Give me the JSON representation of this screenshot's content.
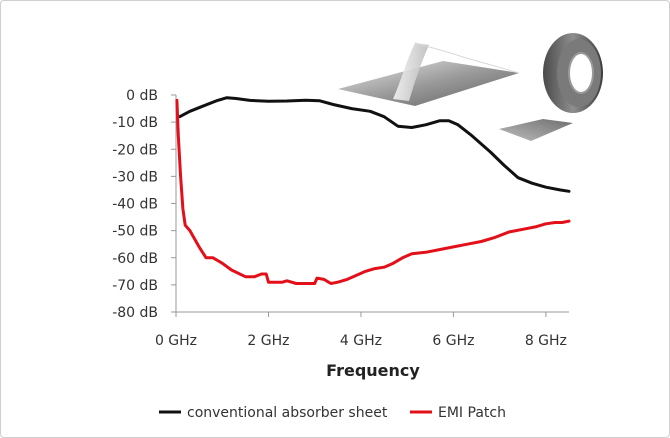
{
  "chart_data": {
    "type": "line",
    "xlabel": "Frequency",
    "ylabel": "",
    "xlim": [
      0,
      8.5
    ],
    "ylim": [
      -80,
      0
    ],
    "x_ticks": [
      {
        "value": 0,
        "label": "0 GHz"
      },
      {
        "value": 2,
        "label": "2 GHz"
      },
      {
        "value": 4,
        "label": "4 GHz"
      },
      {
        "value": 6,
        "label": "6 GHz"
      },
      {
        "value": 8,
        "label": "8 GHz"
      }
    ],
    "y_ticks": [
      {
        "value": 0,
        "label": "0 dB"
      },
      {
        "value": -10,
        "label": "-10 dB"
      },
      {
        "value": -20,
        "label": "-20 dB"
      },
      {
        "value": -30,
        "label": "-30 dB"
      },
      {
        "value": -40,
        "label": "-40 dB"
      },
      {
        "value": -50,
        "label": "-50 dB"
      },
      {
        "value": -60,
        "label": "-60 dB"
      },
      {
        "value": -70,
        "label": "-70 dB"
      },
      {
        "value": -80,
        "label": "-80 dB"
      }
    ],
    "grid": false,
    "legend_position": "bottom",
    "series": [
      {
        "name": "conventional absorber sheet",
        "color": "#111111",
        "points": [
          [
            0.08,
            -8
          ],
          [
            0.3,
            -6
          ],
          [
            0.6,
            -4
          ],
          [
            0.9,
            -2
          ],
          [
            1.1,
            -1
          ],
          [
            1.3,
            -1.3
          ],
          [
            1.6,
            -2
          ],
          [
            2.0,
            -2.3
          ],
          [
            2.4,
            -2.2
          ],
          [
            2.8,
            -1.9
          ],
          [
            3.1,
            -2.1
          ],
          [
            3.4,
            -3.5
          ],
          [
            3.8,
            -5
          ],
          [
            4.2,
            -6
          ],
          [
            4.5,
            -8
          ],
          [
            4.8,
            -11.5
          ],
          [
            5.1,
            -12
          ],
          [
            5.4,
            -11
          ],
          [
            5.7,
            -9.5
          ],
          [
            5.9,
            -9.5
          ],
          [
            6.1,
            -11
          ],
          [
            6.4,
            -15
          ],
          [
            6.8,
            -21
          ],
          [
            7.1,
            -26
          ],
          [
            7.4,
            -30.5
          ],
          [
            7.7,
            -32.5
          ],
          [
            8.0,
            -34
          ],
          [
            8.3,
            -35
          ],
          [
            8.5,
            -35.5
          ]
        ]
      },
      {
        "name": "EMI Patch",
        "color": "#e3101a",
        "points": [
          [
            0.02,
            -2
          ],
          [
            0.05,
            -15
          ],
          [
            0.1,
            -30
          ],
          [
            0.15,
            -42
          ],
          [
            0.2,
            -48
          ],
          [
            0.3,
            -50
          ],
          [
            0.5,
            -56
          ],
          [
            0.65,
            -60
          ],
          [
            0.8,
            -60
          ],
          [
            0.9,
            -61
          ],
          [
            1.0,
            -62
          ],
          [
            1.2,
            -64.5
          ],
          [
            1.5,
            -67
          ],
          [
            1.7,
            -67
          ],
          [
            1.85,
            -66
          ],
          [
            1.95,
            -66
          ],
          [
            2.0,
            -69
          ],
          [
            2.3,
            -69
          ],
          [
            2.4,
            -68.5
          ],
          [
            2.6,
            -69.5
          ],
          [
            2.9,
            -69.5
          ],
          [
            3.0,
            -69.5
          ],
          [
            3.05,
            -67.5
          ],
          [
            3.2,
            -68
          ],
          [
            3.35,
            -69.5
          ],
          [
            3.5,
            -69
          ],
          [
            3.7,
            -68
          ],
          [
            3.9,
            -66.5
          ],
          [
            4.1,
            -65
          ],
          [
            4.3,
            -64
          ],
          [
            4.5,
            -63.5
          ],
          [
            4.7,
            -62
          ],
          [
            4.9,
            -60
          ],
          [
            5.1,
            -58.5
          ],
          [
            5.4,
            -58
          ],
          [
            5.7,
            -57
          ],
          [
            6.0,
            -56
          ],
          [
            6.3,
            -55
          ],
          [
            6.6,
            -54
          ],
          [
            6.9,
            -52.5
          ],
          [
            7.2,
            -50.5
          ],
          [
            7.5,
            -49.5
          ],
          [
            7.8,
            -48.5
          ],
          [
            8.0,
            -47.5
          ],
          [
            8.2,
            -47
          ],
          [
            8.35,
            -47
          ],
          [
            8.5,
            -46.5
          ]
        ]
      }
    ]
  }
}
